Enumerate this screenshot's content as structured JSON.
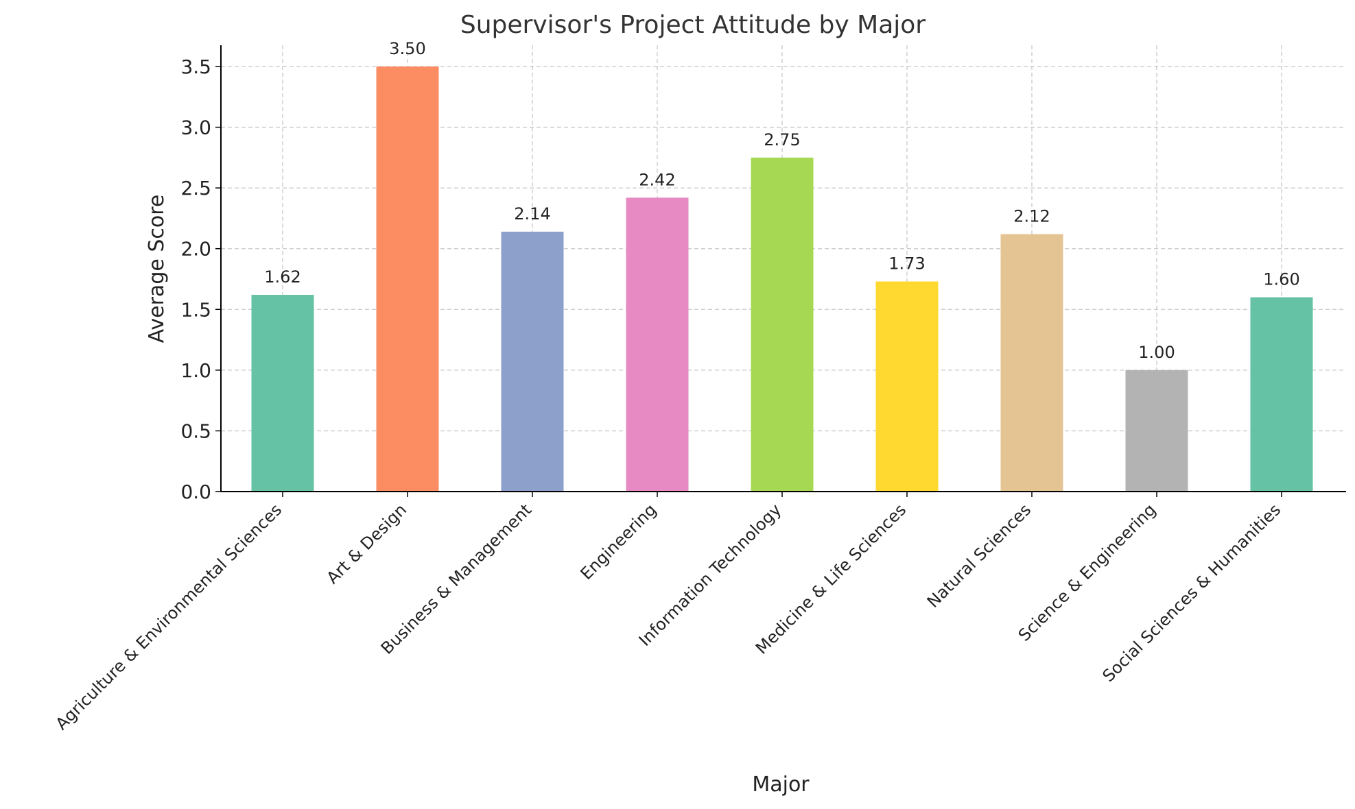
{
  "chart_data": {
    "type": "bar",
    "title": "Supervisor's Project Attitude by Major",
    "xlabel": "Major",
    "ylabel": "Average Score",
    "categories": [
      "Agriculture & Environmental Sciences",
      "Art & Design",
      "Business & Management",
      "Engineering",
      "Information Technology",
      "Medicine & Life Sciences",
      "Natural Sciences",
      "Science & Engineering",
      "Social Sciences & Humanities"
    ],
    "values": [
      1.62,
      3.5,
      2.14,
      2.42,
      2.75,
      1.73,
      2.12,
      1.0,
      1.6
    ],
    "value_labels": [
      "1.62",
      "3.50",
      "2.14",
      "2.42",
      "2.75",
      "1.73",
      "2.12",
      "1.00",
      "1.60"
    ],
    "colors": [
      "#66c2a5",
      "#fc8d62",
      "#8da0cb",
      "#e78ac3",
      "#a6d854",
      "#ffd92f",
      "#e5c494",
      "#b3b3b3",
      "#66c2a5"
    ],
    "ylim": [
      0,
      3.675
    ],
    "yticks": [
      0.0,
      0.5,
      1.0,
      1.5,
      2.0,
      2.5,
      3.0,
      3.5
    ],
    "ytick_labels": [
      "0.0",
      "0.5",
      "1.0",
      "1.5",
      "2.0",
      "2.5",
      "3.0",
      "3.5"
    ],
    "grid": true,
    "legend": "none"
  }
}
